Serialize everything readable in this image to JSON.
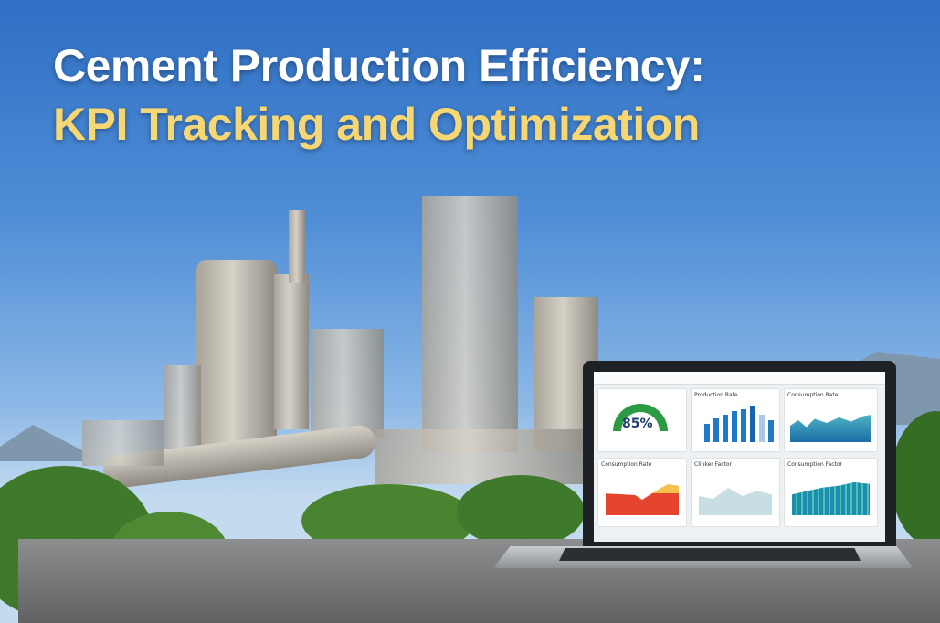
{
  "headline": {
    "line1": "Cement Production Efficiency:",
    "line2": "KPI Tracking and Optimization"
  },
  "colors": {
    "line1": "#ffffff",
    "line2": "#f6d774",
    "sky": "#4f8ed6",
    "gauge": "#2c9a45"
  },
  "dashboard": {
    "gauge_value": "85%",
    "panels": [
      "Production Rate",
      "Consumption Rate",
      "Consumption Rate",
      "Clinker Factor",
      "Consumption Factor"
    ]
  }
}
